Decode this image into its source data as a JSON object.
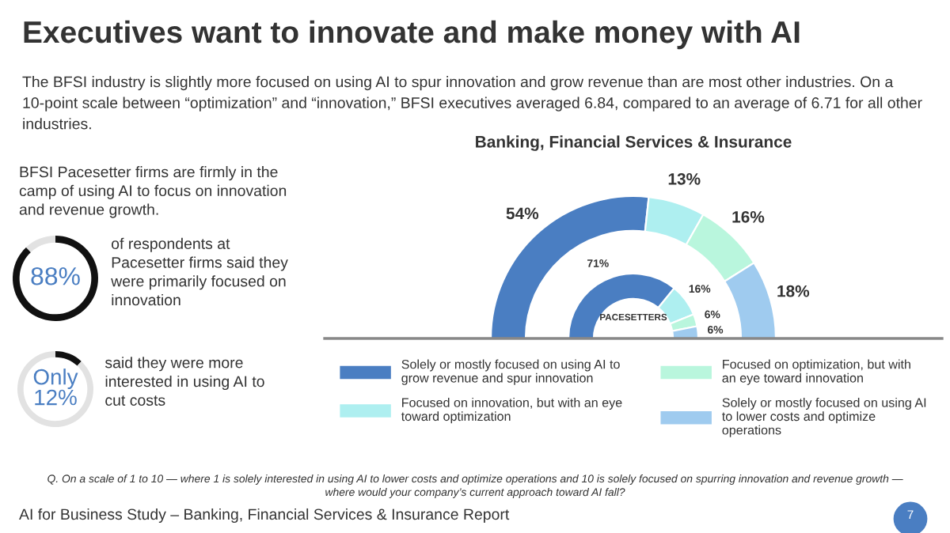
{
  "chart_data": [
    {
      "type": "other",
      "title": "Executives want to innovate and make money with AI",
      "subtitle": "The BFSI industry is slightly more focused on using AI to spur innovation and grow revenue than are most other industries. On a 10-point scale between “optimization” and “innovation,” BFSI executives averaged 6.84, compared to an average of 6.71 for all other industries.",
      "annotations": [
        "BFSI Pacesetter firms are firmly in the\ncamp of using AI to focus on innovation\nand revenue growth.",
        "Q. On a scale of 1 to 10 — where 1 is solely interested in using AI to lower costs and optimize operations and 10 is solely focused on spurring innovation and revenue growth —\nwhere would your company’s current approach toward AI fall?",
        "AI for Business Study – Banking, Financial Services & Insurance Report",
        "7"
      ]
    },
    {
      "type": "donut",
      "categories": [
        null,
        null
      ],
      "values": [
        88,
        12
      ],
      "colors": [
        "#111111",
        "#e2e2e2"
      ],
      "value_labels": [
        "88%",
        null
      ],
      "annotations": [
        "of respondents at\nPacesetter firms said they\nwere primarily focused on\ninnovation"
      ]
    },
    {
      "type": "donut",
      "categories": [
        null,
        null
      ],
      "values": [
        12,
        88
      ],
      "colors": [
        "#111111",
        "#e2e2e2"
      ],
      "annotations": [
        "Only\n12%",
        "said they were more\ninterested in using AI to\ncut costs"
      ]
    },
    {
      "type": "donut",
      "title": "Banking, Financial Services & Insurance",
      "legend": "bottom",
      "categories": [
        "Solely or mostly focused on using AI to\ngrow revenue and spur innovation",
        "Focused on innovation, but with an eye\ntoward optimization",
        "Focused on optimization, but with\nan eye toward innovation",
        "Solely or mostly focused on using AI\nto lower costs and optimize\noperations"
      ],
      "colors": [
        "#4a7ec2",
        "#aeeff0",
        "#b9f6dd",
        "#9fcbef"
      ],
      "series": [
        {
          "name": "PACESETTERS",
          "values": [
            71,
            16,
            6,
            6
          ],
          "value_labels": [
            "71%",
            "16%",
            "6%",
            "6%"
          ]
        },
        {
          "values": [
            54,
            13,
            16,
            18
          ],
          "value_labels": [
            "54%",
            "13%",
            "16%",
            "18%"
          ]
        }
      ]
    }
  ]
}
